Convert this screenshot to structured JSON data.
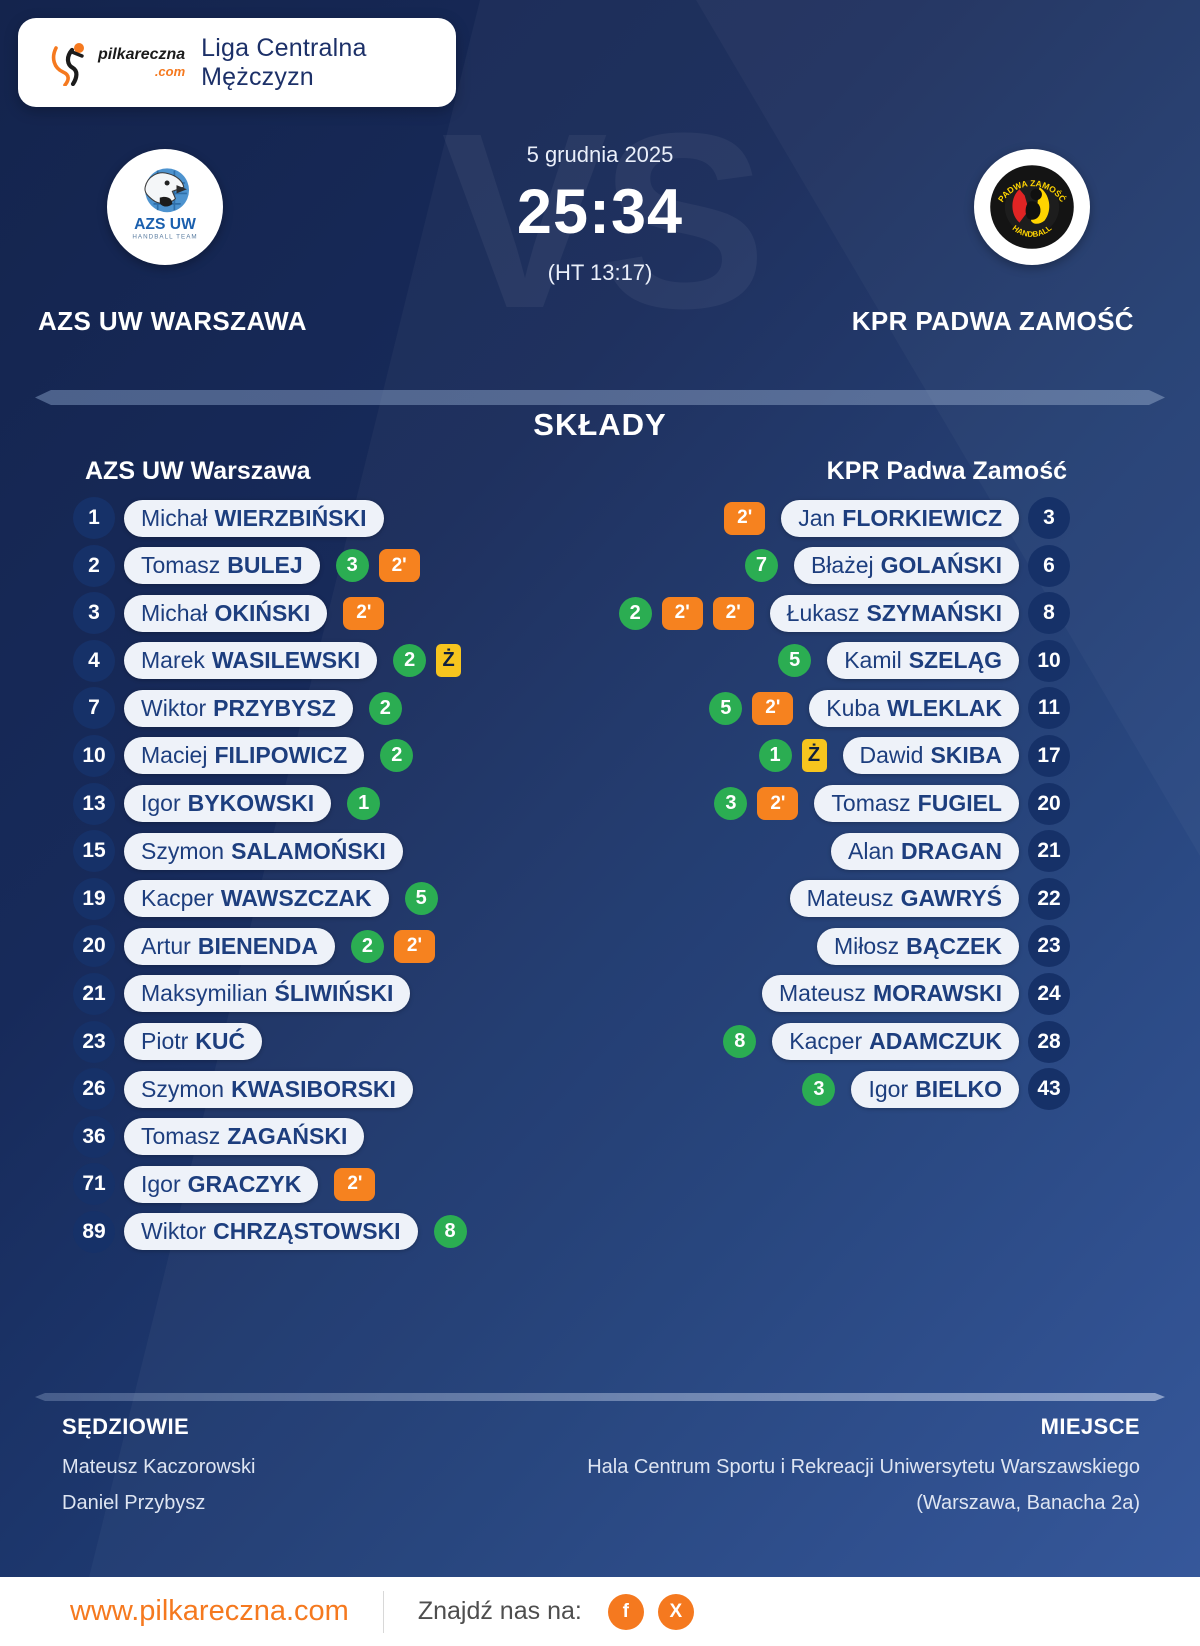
{
  "header": {
    "brand": {
      "name": "pilkareczna",
      "tld": ".com"
    },
    "title": "Liga Centralna Mężczyzn"
  },
  "match": {
    "date": "5 grudnia 2025",
    "score": "25:34",
    "halftime": "(HT 13:17)",
    "vs": "VS",
    "home": {
      "name": "AZS UW WARSZAWA",
      "crest_line1": "AZS UW",
      "crest_line2": "HANDBALL TEAM"
    },
    "away": {
      "name": "KPR PADWA ZAMOŚĆ",
      "crest_arc_top": "PADWA ZAMOŚĆ",
      "crest_arc_bottom": "HANDBALL"
    }
  },
  "rosters": {
    "title": "SKŁADY",
    "home": {
      "team": "AZS UW Warszawa",
      "players": [
        {
          "number": "1",
          "first": "Michał",
          "last": "WIERZBIŃSKI",
          "badges": []
        },
        {
          "number": "2",
          "first": "Tomasz",
          "last": "BULEJ",
          "badges": [
            {
              "type": "goals",
              "value": "3"
            },
            {
              "type": "susp",
              "value": "2'"
            }
          ]
        },
        {
          "number": "3",
          "first": "Michał",
          "last": "OKIŃSKI",
          "badges": [
            {
              "type": "susp",
              "value": "2'"
            }
          ]
        },
        {
          "number": "4",
          "first": "Marek",
          "last": "WASILEWSKI",
          "badges": [
            {
              "type": "goals",
              "value": "2"
            },
            {
              "type": "yellow",
              "value": "Ż"
            }
          ]
        },
        {
          "number": "7",
          "first": "Wiktor",
          "last": "PRZYBYSZ",
          "badges": [
            {
              "type": "goals",
              "value": "2"
            }
          ]
        },
        {
          "number": "10",
          "first": "Maciej",
          "last": "FILIPOWICZ",
          "badges": [
            {
              "type": "goals",
              "value": "2"
            }
          ]
        },
        {
          "number": "13",
          "first": "Igor",
          "last": "BYKOWSKI",
          "badges": [
            {
              "type": "goals",
              "value": "1"
            }
          ]
        },
        {
          "number": "15",
          "first": "Szymon",
          "last": "SALAMOŃSKI",
          "badges": []
        },
        {
          "number": "19",
          "first": "Kacper",
          "last": "WAWSZCZAK",
          "badges": [
            {
              "type": "goals",
              "value": "5"
            }
          ]
        },
        {
          "number": "20",
          "first": "Artur",
          "last": "BIENENDA",
          "badges": [
            {
              "type": "goals",
              "value": "2"
            },
            {
              "type": "susp",
              "value": "2'"
            }
          ]
        },
        {
          "number": "21",
          "first": "Maksymilian",
          "last": "ŚLIWIŃSKI",
          "badges": []
        },
        {
          "number": "23",
          "first": "Piotr",
          "last": "KUĆ",
          "badges": []
        },
        {
          "number": "26",
          "first": "Szymon",
          "last": "KWASIBORSKI",
          "badges": []
        },
        {
          "number": "36",
          "first": "Tomasz",
          "last": "ZAGAŃSKI",
          "badges": []
        },
        {
          "number": "71",
          "first": "Igor",
          "last": "GRACZYK",
          "badges": [
            {
              "type": "susp",
              "value": "2'"
            }
          ]
        },
        {
          "number": "89",
          "first": "Wiktor",
          "last": "CHRZĄSTOWSKI",
          "badges": [
            {
              "type": "goals",
              "value": "8"
            }
          ]
        }
      ]
    },
    "away": {
      "team": "KPR Padwa Zamość",
      "players": [
        {
          "number": "3",
          "first": "Jan",
          "last": "FLORKIEWICZ",
          "badges": [
            {
              "type": "susp",
              "value": "2'"
            }
          ]
        },
        {
          "number": "6",
          "first": "Błażej",
          "last": "GOLAŃSKI",
          "badges": [
            {
              "type": "goals",
              "value": "7"
            }
          ]
        },
        {
          "number": "8",
          "first": "Łukasz",
          "last": "SZYMAŃSKI",
          "badges": [
            {
              "type": "goals",
              "value": "2"
            },
            {
              "type": "susp",
              "value": "2'"
            },
            {
              "type": "susp",
              "value": "2'"
            }
          ]
        },
        {
          "number": "10",
          "first": "Kamil",
          "last": "SZELĄG",
          "badges": [
            {
              "type": "goals",
              "value": "5"
            }
          ]
        },
        {
          "number": "11",
          "first": "Kuba",
          "last": "WLEKLAK",
          "badges": [
            {
              "type": "goals",
              "value": "5"
            },
            {
              "type": "susp",
              "value": "2'"
            }
          ]
        },
        {
          "number": "17",
          "first": "Dawid",
          "last": "SKIBA",
          "badges": [
            {
              "type": "goals",
              "value": "1"
            },
            {
              "type": "yellow",
              "value": "Ż"
            }
          ]
        },
        {
          "number": "20",
          "first": "Tomasz",
          "last": "FUGIEL",
          "badges": [
            {
              "type": "goals",
              "value": "3"
            },
            {
              "type": "susp",
              "value": "2'"
            }
          ]
        },
        {
          "number": "21",
          "first": "Alan",
          "last": "DRAGAN",
          "badges": []
        },
        {
          "number": "22",
          "first": "Mateusz",
          "last": "GAWRYŚ",
          "badges": []
        },
        {
          "number": "23",
          "first": "Miłosz",
          "last": "BĄCZEK",
          "badges": []
        },
        {
          "number": "24",
          "first": "Mateusz",
          "last": "MORAWSKI",
          "badges": []
        },
        {
          "number": "28",
          "first": "Kacper",
          "last": "ADAMCZUK",
          "badges": [
            {
              "type": "goals",
              "value": "8"
            }
          ]
        },
        {
          "number": "43",
          "first": "Igor",
          "last": "BIELKO",
          "badges": [
            {
              "type": "goals",
              "value": "3"
            }
          ]
        }
      ]
    }
  },
  "officials": {
    "title": "SĘDZIOWIE",
    "referees": [
      "Mateusz Kaczorowski",
      "Daniel Przybysz"
    ]
  },
  "venue": {
    "title": "MIEJSCE",
    "lines": [
      "Hala Centrum Sportu i Rekreacji Uniwersytetu Warszawskiego",
      "(Warszawa, Banacha 2a)"
    ]
  },
  "footer": {
    "website": "www.pilkareczna.com",
    "find_us_label": "Znajdź nas na:",
    "social": [
      {
        "name": "facebook",
        "glyph": "f"
      },
      {
        "name": "x",
        "glyph": "X"
      }
    ]
  },
  "colors": {
    "accent_orange": "#f5791f",
    "goal_green": "#2bad52",
    "suspension_orange": "#f6821f",
    "yellow_card": "#f7c51e",
    "navy_background": "#172a5a",
    "pill_text": "#1d3e7e"
  }
}
